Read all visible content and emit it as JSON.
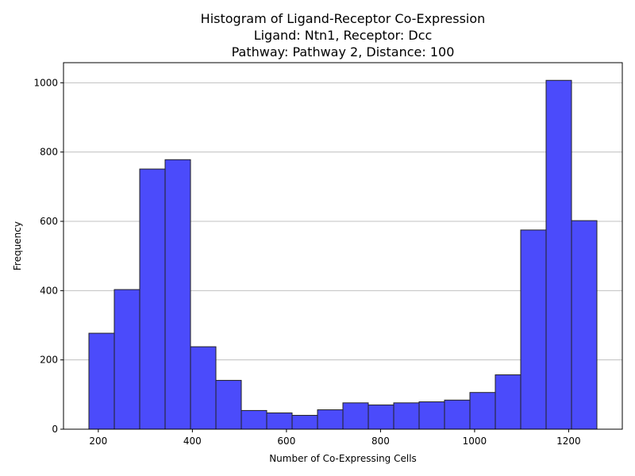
{
  "chart_data": {
    "type": "bar",
    "title_lines": [
      "Histogram of Ligand-Receptor Co-Expression",
      "Ligand: Ntn1, Receptor: Dcc",
      "Pathway: Pathway 2, Distance: 100"
    ],
    "xlabel": "Number of Co-Expressing Cells",
    "ylabel": "Frequency",
    "xlim": [
      126,
      1314
    ],
    "ylim": [
      0,
      1058
    ],
    "xticks": [
      200,
      400,
      600,
      800,
      1000,
      1200
    ],
    "yticks": [
      0,
      200,
      400,
      600,
      800,
      1000
    ],
    "grid": "horizontal",
    "bar_color": "#4b4bfb",
    "edge_color": "#222222",
    "bins": [
      {
        "x0": 180,
        "x1": 234,
        "count": 277
      },
      {
        "x0": 234,
        "x1": 288,
        "count": 403
      },
      {
        "x0": 288,
        "x1": 342,
        "count": 751
      },
      {
        "x0": 342,
        "x1": 396,
        "count": 778
      },
      {
        "x0": 396,
        "x1": 450,
        "count": 238
      },
      {
        "x0": 450,
        "x1": 504,
        "count": 141
      },
      {
        "x0": 504,
        "x1": 558,
        "count": 54
      },
      {
        "x0": 558,
        "x1": 612,
        "count": 47
      },
      {
        "x0": 612,
        "x1": 666,
        "count": 40
      },
      {
        "x0": 666,
        "x1": 720,
        "count": 56
      },
      {
        "x0": 720,
        "x1": 774,
        "count": 76
      },
      {
        "x0": 774,
        "x1": 828,
        "count": 70
      },
      {
        "x0": 828,
        "x1": 882,
        "count": 76
      },
      {
        "x0": 882,
        "x1": 936,
        "count": 79
      },
      {
        "x0": 936,
        "x1": 990,
        "count": 84
      },
      {
        "x0": 990,
        "x1": 1044,
        "count": 106
      },
      {
        "x0": 1044,
        "x1": 1098,
        "count": 157
      },
      {
        "x0": 1098,
        "x1": 1152,
        "count": 575
      },
      {
        "x0": 1152,
        "x1": 1206,
        "count": 1007
      },
      {
        "x0": 1206,
        "x1": 1260,
        "count": 602
      }
    ]
  }
}
